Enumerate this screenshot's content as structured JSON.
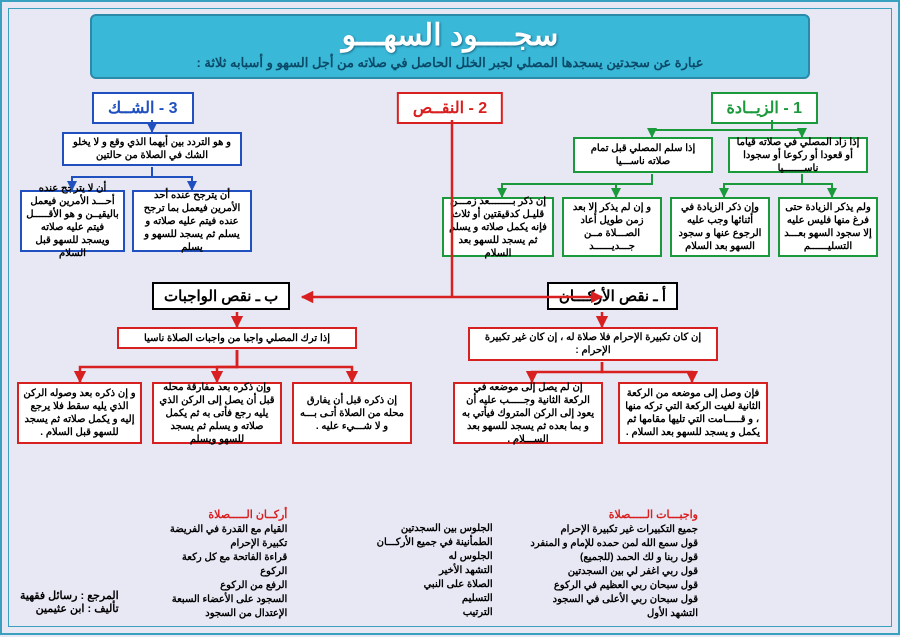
{
  "title": "سجــــود السهـــو",
  "subtitle": "عبارة عن سجدتين يسجدها المصلي لجبر الخلل الحاصل في صلاته من أجل السهو و أسبابه ثلاثة :",
  "colors": {
    "cyan": "#3ab8d8",
    "green": "#1a9a3a",
    "red": "#d82020",
    "blue": "#2050c0",
    "bg": "#e8e8f5"
  },
  "categories": {
    "ziyada": {
      "label": "1 - الزيــادة",
      "color": "green"
    },
    "naqs": {
      "label": "2 - النقــص",
      "color": "red"
    },
    "shakk": {
      "label": "3 - الشــك",
      "color": "blue"
    }
  },
  "ziyada_boxes": {
    "z1": "إذا زاد المصلي في صلاته قياما أو قعودا أو ركوعا أو سجودا ناســـــــيا",
    "z2": "إذا سلم المصلي قبل تمام صلاته ناســـيا",
    "z11": "ولم يذكر الزيادة حتى فرغ منها فليس عليه إلا سجود السهو بعـــد التسليــــــم",
    "z12": "وإن ذكر الزيادة في أثنائها وجب عليه الرجوع عنها و سجود السهو بعد السلام",
    "z21": "و إن لم يذكر إلا بعد زمن طويل أعاد الصـــلاة مــن جـــديــــــد",
    "z22": "إن ذكر بــــــــعد زمـــن قليـل كدقيقتين أو ثلاث فإنه يكمل صلاته و يسلم ثم يسجد للسهو بعد السلام"
  },
  "shakk_boxes": {
    "s_def": "و هو التردد بين أيهما الذي وقع و لا يخلو الشك في الصلاة من حالتين",
    "s1": "أن يترجح عنده أحد الأمرين فيعمل بما ترجح عنده فيتم عليه صلاته و يسلم ثم يسجد للسهو و يسلم",
    "s2": "أن لا يترجح عنده أحـــد الأمرين فيعمل باليقيــن و هو الأقـــــل فيتم عليه صلاته ويسجد للسهو قبل السلام"
  },
  "naqs_sub": {
    "arkan": "أ ـ نقص الأركـــان",
    "wajibat": "ب ـ نقص الواجبات"
  },
  "arkan_boxes": {
    "a_top": "إن كان تكبيرة الإحرام فلا صلاة له ، إن كان غير تكبيرة الإحرام :",
    "a1": "فإن وصل إلى موضعه من الركعة الثانية لغيت الركعة التي تركه منها ، و قـــــامت التي تليها مقامها ثم يكمل و يسجد للسهو بعد السلام .",
    "a2": "إن لم يصل إلى موضعه في الركعة الثانية وجـــــب عليه أن يعود إلى الركن المتروك فيأتي به و بما بعده ثم يسجد للسهو بعد الســـلام ."
  },
  "wajibat_boxes": {
    "w_top": "إذا ترك المصلي واجبا من واجبات الصلاة ناسيا",
    "w1": "إن ذكره قبل أن يفارق محله من الصلاة أتـى بـــه و لا شـــيء عليه .",
    "w2": "وإن ذكره بعد مفارقة محله قبل أن يصل إلى الركن الذي يليه رجع فأتى به ثم يكمل صلاته و يسلم ثم يسجد للسهو ويسلم",
    "w3": "و إن ذكره بعد وصوله الركن الذي يليه سقط فلا يرجع إليه و يكمل صلاته ثم يسجد للسهو قبل السلام ."
  },
  "footer": {
    "arkan_hd": "أركــان الـــــصلاة",
    "arkan_list": [
      "القيام مع القدرة في الفريضة",
      "تكبيرة الإحرام",
      "قراءة الفاتحة مع كل ركعة",
      "الركوع",
      "الرفع من الركوع",
      "السجود على الأعضاء السبعة",
      "الإعتدال من السجود"
    ],
    "arkan_list2": [
      "الجلوس بين السجدتين",
      "الطمأنينة في جميع الأركـــان",
      "الجلوس له",
      "التشهد الأخير",
      "الصلاة على النبي",
      "التسليم",
      "الترتيب"
    ],
    "wajibat_hd": "واجبـــات الـــــصلاة",
    "wajibat_list": [
      "جميع التكبيرات غير تكبيرة الإحرام",
      "قول سمع الله لمن حمده للإمام و المنفرد",
      "قول ربنا و لك الحمد (للجميع)",
      "قول ربي اغفر لي بين السجدتين",
      "قول سبحان ربي العظيم في الركوع",
      "قول سبحان ربي الأعلى في السجود",
      "التشهد الأول"
    ]
  },
  "reference": {
    "line1": "المرجع : رسائل فقهية",
    "line2": "تأليف : ابن عثيمين"
  }
}
